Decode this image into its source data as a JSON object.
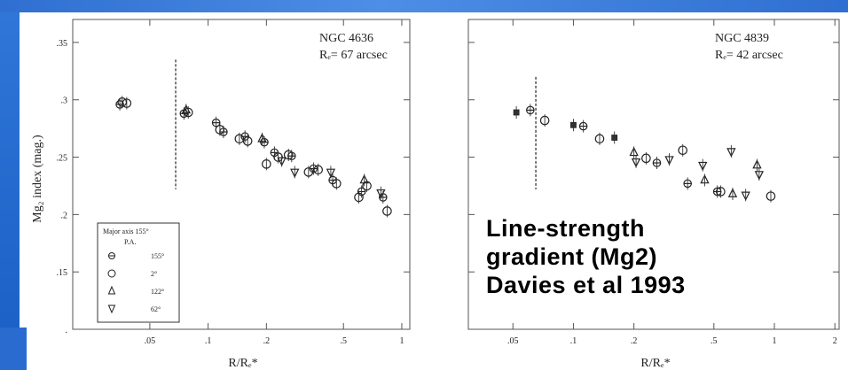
{
  "caption": {
    "line1": "Line-strength",
    "line2": "gradient (Mg2)",
    "line3": "Davies et al 1993"
  },
  "colors": {
    "background": "#1a5fc4",
    "panel": "#ffffff",
    "ink": "#000000"
  },
  "chart_data": [
    {
      "type": "scatter",
      "galaxy": "NGC 4636",
      "re_label": "Rₑ= 67 arcsec",
      "xlabel": "R/Rₑ*",
      "ylabel": "Mg₂ index (mag.)",
      "x_scale": "log",
      "xlim": [
        0.02,
        1.1
      ],
      "ylim": [
        0.1,
        0.37
      ],
      "x_ticks": [
        ".05",
        ".1",
        ".2",
        ".5",
        "1"
      ],
      "y_ticks": [
        ".35",
        ".3",
        ".25",
        ".2",
        ".15",
        "."
      ],
      "legend": {
        "title": "Major axis 155°",
        "subtitle": "P.A.",
        "entries": [
          {
            "marker": "circle-cross",
            "label": "155°"
          },
          {
            "marker": "circle",
            "label": "2°"
          },
          {
            "marker": "triangle-up",
            "label": "122°"
          },
          {
            "marker": "triangle-down",
            "label": "62°"
          }
        ]
      },
      "seeing_line_x": 0.068,
      "points": [
        {
          "x": 0.035,
          "y": 0.296,
          "m": "circle-cross"
        },
        {
          "x": 0.036,
          "y": 0.298,
          "m": "circle"
        },
        {
          "x": 0.038,
          "y": 0.297,
          "m": "circle"
        },
        {
          "x": 0.075,
          "y": 0.288,
          "m": "circle-cross"
        },
        {
          "x": 0.077,
          "y": 0.291,
          "m": "triangle-up"
        },
        {
          "x": 0.079,
          "y": 0.289,
          "m": "circle"
        },
        {
          "x": 0.11,
          "y": 0.28,
          "m": "circle-cross"
        },
        {
          "x": 0.115,
          "y": 0.274,
          "m": "circle"
        },
        {
          "x": 0.12,
          "y": 0.272,
          "m": "circle-cross"
        },
        {
          "x": 0.145,
          "y": 0.266,
          "m": "circle"
        },
        {
          "x": 0.155,
          "y": 0.268,
          "m": "circle-cross"
        },
        {
          "x": 0.16,
          "y": 0.264,
          "m": "circle"
        },
        {
          "x": 0.19,
          "y": 0.266,
          "m": "triangle-up"
        },
        {
          "x": 0.195,
          "y": 0.263,
          "m": "circle-cross"
        },
        {
          "x": 0.2,
          "y": 0.244,
          "m": "circle"
        },
        {
          "x": 0.22,
          "y": 0.254,
          "m": "circle-cross"
        },
        {
          "x": 0.23,
          "y": 0.25,
          "m": "circle"
        },
        {
          "x": 0.24,
          "y": 0.247,
          "m": "triangle-down"
        },
        {
          "x": 0.26,
          "y": 0.252,
          "m": "circle"
        },
        {
          "x": 0.27,
          "y": 0.251,
          "m": "circle-cross"
        },
        {
          "x": 0.28,
          "y": 0.237,
          "m": "triangle-down"
        },
        {
          "x": 0.33,
          "y": 0.237,
          "m": "circle"
        },
        {
          "x": 0.35,
          "y": 0.24,
          "m": "circle-cross"
        },
        {
          "x": 0.37,
          "y": 0.239,
          "m": "circle"
        },
        {
          "x": 0.43,
          "y": 0.237,
          "m": "triangle-down"
        },
        {
          "x": 0.44,
          "y": 0.23,
          "m": "circle-cross"
        },
        {
          "x": 0.46,
          "y": 0.227,
          "m": "circle"
        },
        {
          "x": 0.6,
          "y": 0.215,
          "m": "circle"
        },
        {
          "x": 0.62,
          "y": 0.22,
          "m": "circle-cross"
        },
        {
          "x": 0.64,
          "y": 0.23,
          "m": "triangle-up"
        },
        {
          "x": 0.66,
          "y": 0.225,
          "m": "circle"
        },
        {
          "x": 0.78,
          "y": 0.219,
          "m": "triangle-down"
        },
        {
          "x": 0.8,
          "y": 0.215,
          "m": "circle-cross"
        },
        {
          "x": 0.84,
          "y": 0.203,
          "m": "circle"
        }
      ]
    },
    {
      "type": "scatter",
      "galaxy": "NGC 4839",
      "re_label": "Rₑ= 42 arcsec",
      "xlabel": "R/Rₑ*",
      "x_scale": "log",
      "xlim": [
        0.03,
        2.1
      ],
      "x_ticks": [
        ".05",
        ".1",
        ".2",
        ".5",
        "1",
        "2"
      ],
      "seeing_line_x": 0.065,
      "points": [
        {
          "x": 0.052,
          "y": 0.289,
          "m": "square"
        },
        {
          "x": 0.061,
          "y": 0.291,
          "m": "circle-cross"
        },
        {
          "x": 0.072,
          "y": 0.282,
          "m": "circle"
        },
        {
          "x": 0.1,
          "y": 0.278,
          "m": "square"
        },
        {
          "x": 0.112,
          "y": 0.277,
          "m": "circle-cross"
        },
        {
          "x": 0.135,
          "y": 0.266,
          "m": "circle"
        },
        {
          "x": 0.16,
          "y": 0.267,
          "m": "square"
        },
        {
          "x": 0.2,
          "y": 0.254,
          "m": "triangle-up"
        },
        {
          "x": 0.205,
          "y": 0.246,
          "m": "triangle-down"
        },
        {
          "x": 0.23,
          "y": 0.249,
          "m": "circle"
        },
        {
          "x": 0.26,
          "y": 0.245,
          "m": "circle-cross"
        },
        {
          "x": 0.3,
          "y": 0.248,
          "m": "triangle-down"
        },
        {
          "x": 0.35,
          "y": 0.256,
          "m": "circle"
        },
        {
          "x": 0.37,
          "y": 0.227,
          "m": "circle-cross"
        },
        {
          "x": 0.44,
          "y": 0.243,
          "m": "triangle-down"
        },
        {
          "x": 0.45,
          "y": 0.23,
          "m": "triangle-up"
        },
        {
          "x": 0.52,
          "y": 0.22,
          "m": "circle-cross"
        },
        {
          "x": 0.54,
          "y": 0.22,
          "m": "circle"
        },
        {
          "x": 0.61,
          "y": 0.255,
          "m": "triangle-down"
        },
        {
          "x": 0.62,
          "y": 0.218,
          "m": "triangle-up"
        },
        {
          "x": 0.72,
          "y": 0.217,
          "m": "triangle-down"
        },
        {
          "x": 0.82,
          "y": 0.243,
          "m": "triangle-up"
        },
        {
          "x": 0.84,
          "y": 0.235,
          "m": "triangle-down"
        },
        {
          "x": 0.96,
          "y": 0.216,
          "m": "circle"
        }
      ]
    }
  ]
}
